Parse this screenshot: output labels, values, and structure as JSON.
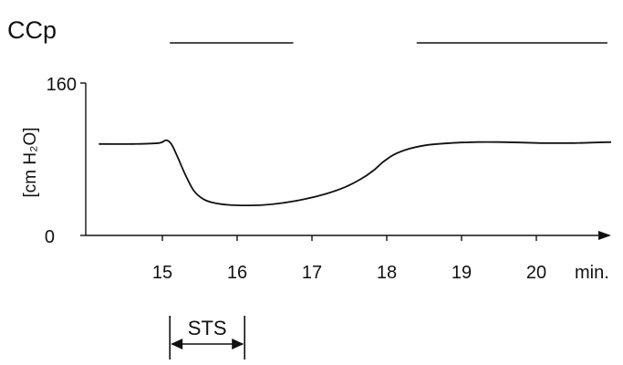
{
  "chart_data": {
    "type": "line",
    "title": "CCp",
    "ylabel": "[cm H₂O]",
    "x_unit": "min.",
    "xlim": [
      14.15,
      21.0
    ],
    "ylim": [
      0,
      160
    ],
    "y_ticks": [
      "0",
      "160"
    ],
    "x_ticks": [
      "15",
      "16",
      "17",
      "18",
      "19",
      "20"
    ],
    "grid": false,
    "series": [
      {
        "x": [
          14.15,
          14.6,
          14.95,
          15.05,
          15.12,
          15.2,
          15.3,
          15.42,
          15.55,
          15.7,
          15.9,
          16.1,
          16.35,
          16.6,
          16.9,
          17.2,
          17.45,
          17.65,
          17.82,
          17.95,
          18.1,
          18.3,
          18.55,
          18.85,
          19.2,
          19.5,
          19.8,
          20.1,
          20.5,
          21.0
        ],
        "y": [
          96,
          96,
          97,
          100,
          96,
          83,
          65,
          47,
          38,
          34,
          32,
          31.5,
          32,
          34,
          38,
          44,
          51,
          59,
          68,
          77,
          85,
          91,
          95,
          97,
          98,
          98,
          97.5,
          97,
          97,
          98
        ]
      }
    ],
    "marker_bars_min": [
      [
        15.1,
        16.75
      ],
      [
        18.4,
        20.95
      ]
    ],
    "interval": {
      "label": "STS",
      "from": 15.1,
      "to": 16.1
    }
  }
}
